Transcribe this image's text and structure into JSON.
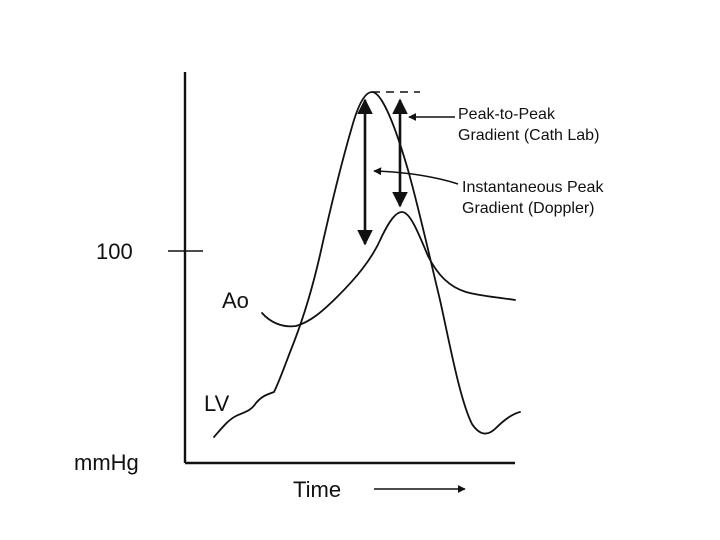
{
  "labels": {
    "y_tick_100": "100",
    "y_unit": "mmHg",
    "x_axis": "Time",
    "ao_curve": "Ao",
    "lv_curve": "LV"
  },
  "annotations": {
    "peak_to_peak_line1": "Peak-to-Peak",
    "peak_to_peak_line2": "Gradient (Cath Lab)",
    "instantaneous_line1": "Instantaneous Peak",
    "instantaneous_line2": "Gradient (Doppler)"
  },
  "colors": {
    "ink": "#111111",
    "background": "#ffffff"
  }
}
